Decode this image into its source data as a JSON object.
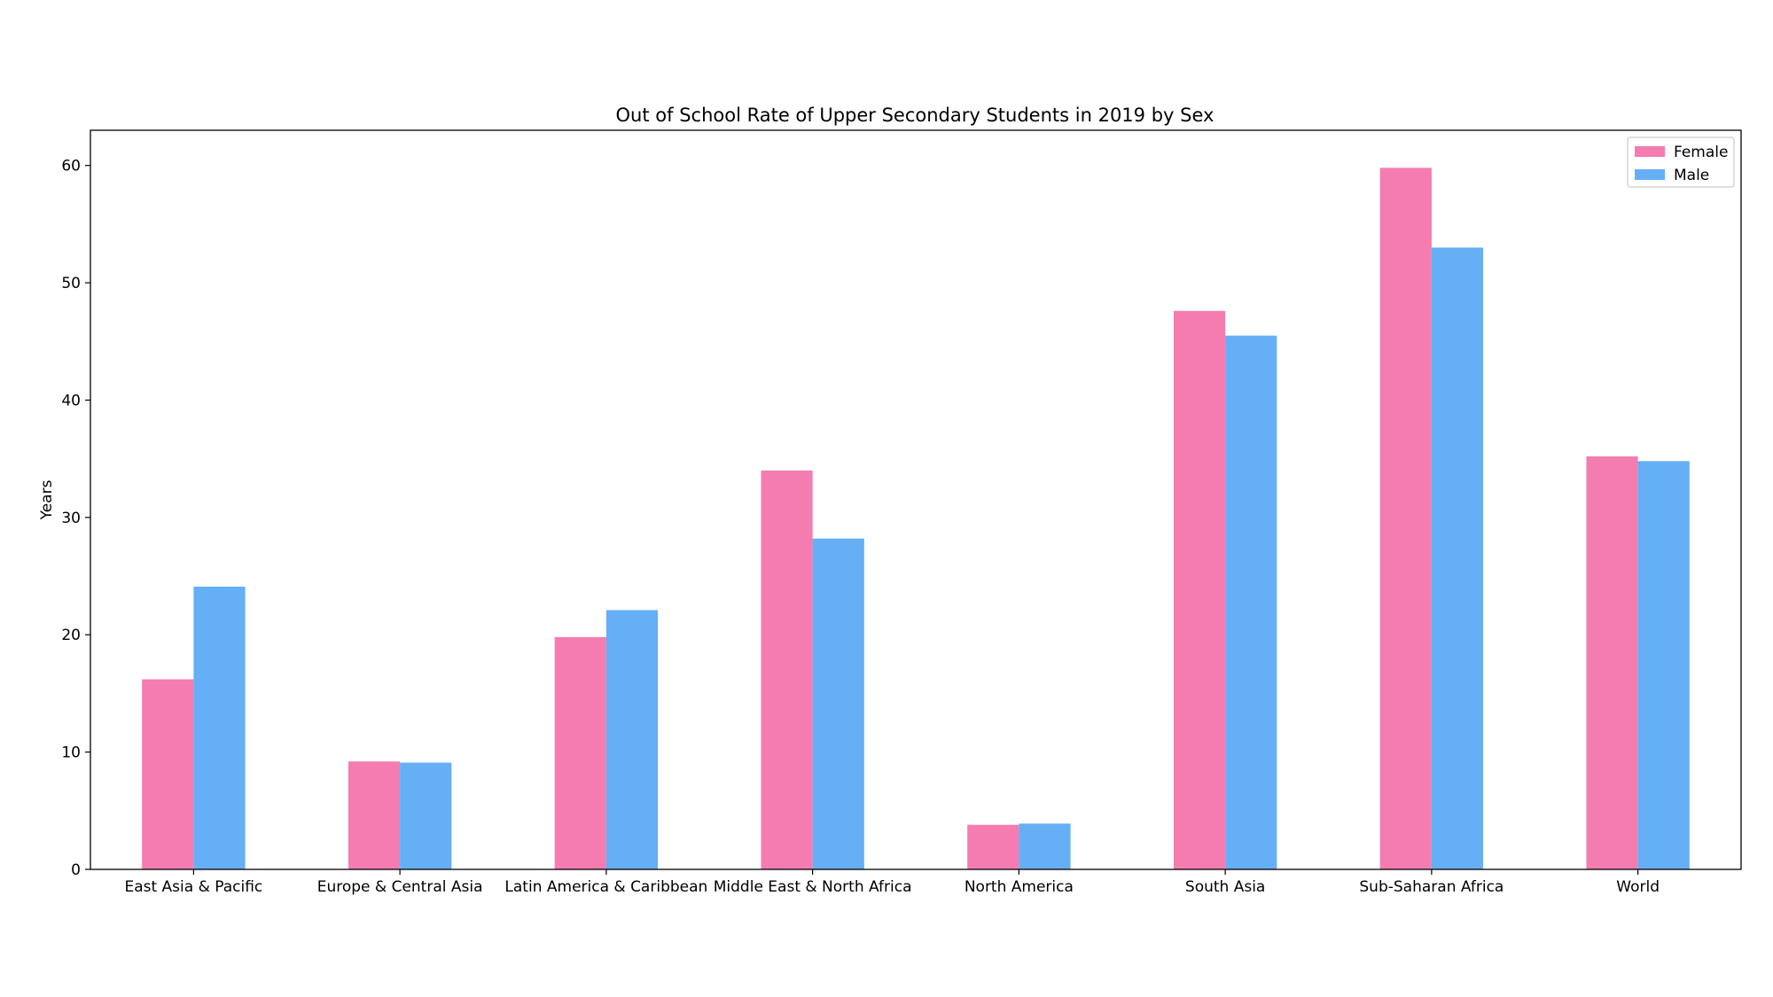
{
  "chart_data": {
    "type": "bar",
    "title": "Out of School Rate of Upper Secondary Students in 2019 by Sex",
    "xlabel": "",
    "ylabel": "Years",
    "ylim": [
      0,
      63
    ],
    "yticks": [
      0,
      10,
      20,
      30,
      40,
      50,
      60
    ],
    "grid": false,
    "legend_position": "top-right",
    "categories": [
      "East Asia & Pacific",
      "Europe & Central Asia",
      "Latin America & Caribbean",
      "Middle East & North Africa",
      "North America",
      "South Asia",
      "Sub-Saharan Africa",
      "World"
    ],
    "series": [
      {
        "name": "Female",
        "color": "#f47cb0",
        "values": [
          16.2,
          9.2,
          19.8,
          34.0,
          3.8,
          47.6,
          59.8,
          35.2
        ]
      },
      {
        "name": "Male",
        "color": "#64aff5",
        "values": [
          24.1,
          9.1,
          22.1,
          28.2,
          3.9,
          45.5,
          53.0,
          34.8
        ]
      }
    ]
  }
}
